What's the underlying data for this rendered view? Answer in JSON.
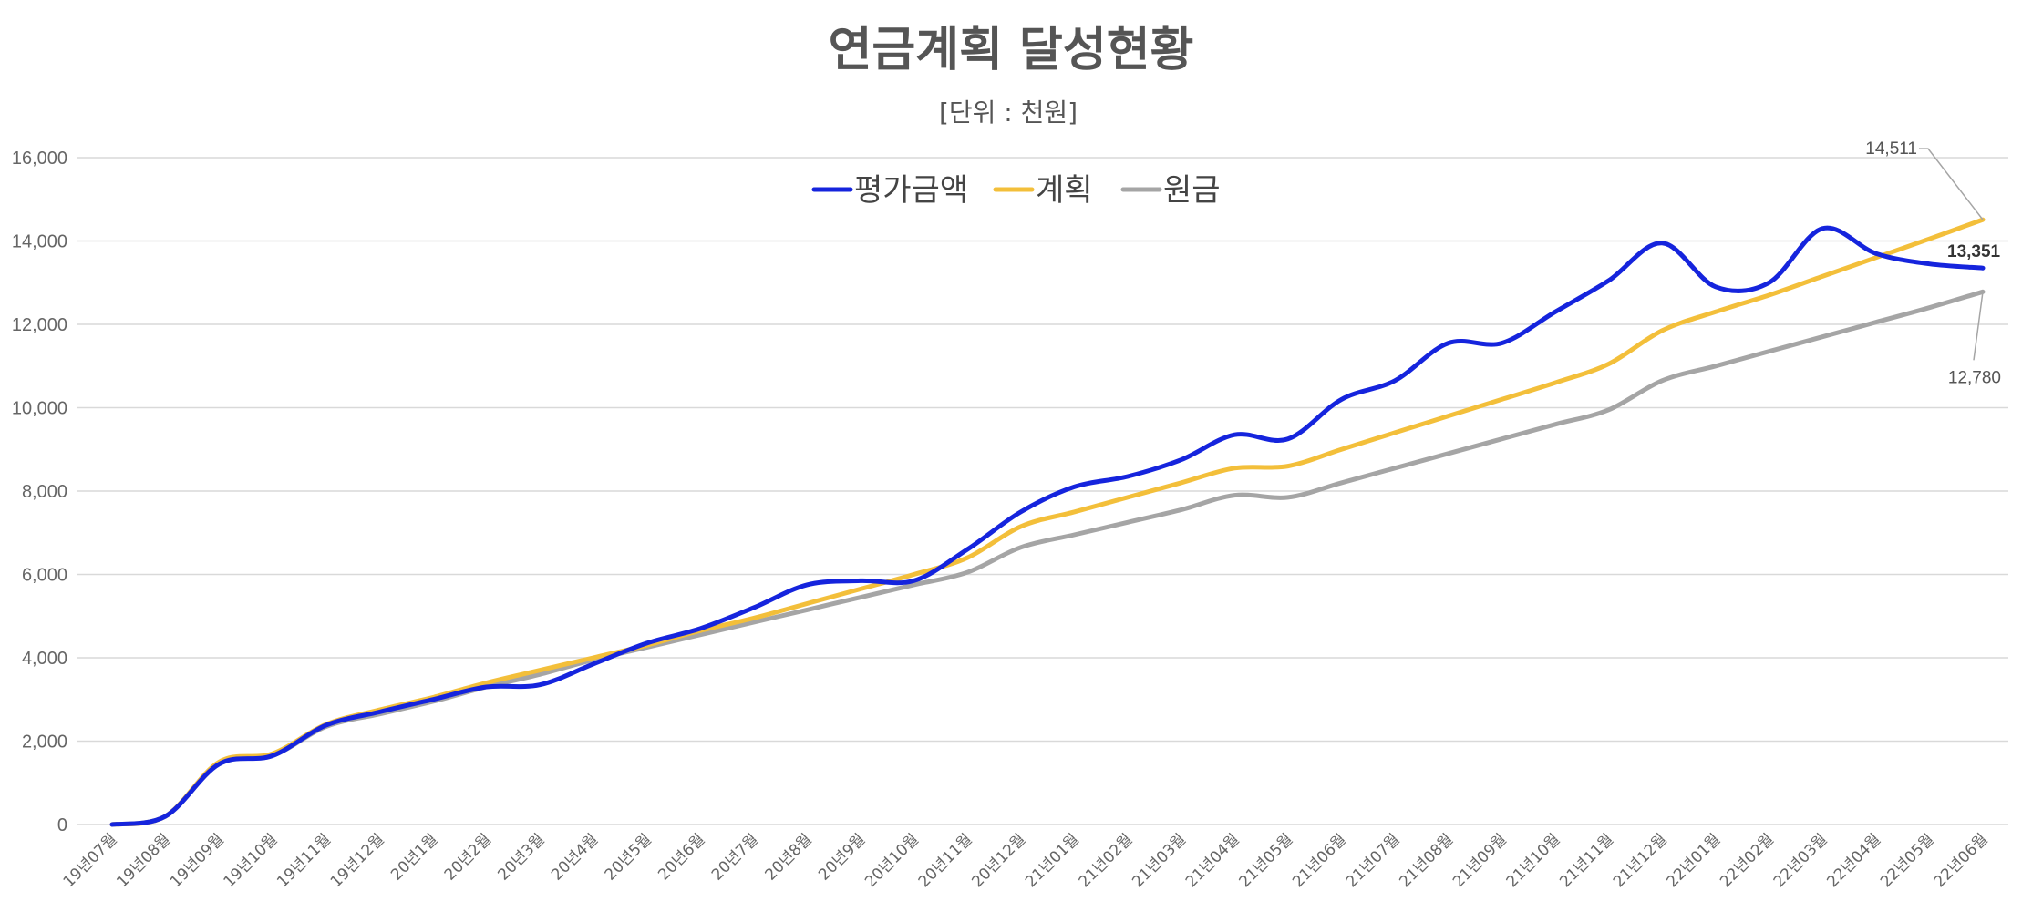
{
  "chart_data": {
    "type": "line",
    "title": "연금계획 달성현황",
    "subtitle": "[단위 : 천원]",
    "xlabel": "",
    "ylabel": "",
    "ylim": [
      0,
      16000
    ],
    "yticks": [
      0,
      2000,
      4000,
      6000,
      8000,
      10000,
      12000,
      14000,
      16000
    ],
    "ytick_labels": [
      "0",
      "2,000",
      "4,000",
      "6,000",
      "8,000",
      "10,000",
      "12,000",
      "14,000",
      "16,000"
    ],
    "grid": true,
    "legend_position": "top-center",
    "categories": [
      "19년07월",
      "19년08월",
      "19년09월",
      "19년10월",
      "19년11월",
      "19년12월",
      "20년1월",
      "20년2월",
      "20년3월",
      "20년4월",
      "20년5월",
      "20년6월",
      "20년7월",
      "20년8월",
      "20년9월",
      "20년10월",
      "20년11월",
      "20년12월",
      "21년01월",
      "21년02월",
      "21년03월",
      "21년04월",
      "21년05월",
      "21년06월",
      "21년07월",
      "21년08월",
      "21년09월",
      "21년10월",
      "21년11월",
      "21년12월",
      "22년01월",
      "22년02월",
      "22년03월",
      "22년04월",
      "22년05월",
      "22년06월"
    ],
    "series": [
      {
        "name": "평가금액",
        "color": "#1524dd",
        "values": [
          0,
          200,
          1450,
          1650,
          2380,
          2700,
          3000,
          3300,
          3350,
          3850,
          4350,
          4700,
          5200,
          5750,
          5850,
          5850,
          6600,
          7500,
          8100,
          8350,
          8750,
          9350,
          9250,
          10200,
          10650,
          11550,
          11550,
          12300,
          13050,
          13950,
          12900,
          13000,
          14300,
          13700,
          13450,
          13351
        ]
      },
      {
        "name": "계획",
        "color": "#f3bf3a",
        "values": [
          0,
          200,
          1500,
          1700,
          2400,
          2750,
          3050,
          3400,
          3700,
          4000,
          4300,
          4650,
          4950,
          5300,
          5650,
          6000,
          6400,
          7150,
          7500,
          7850,
          8200,
          8550,
          8600,
          9000,
          9400,
          9800,
          10200,
          10600,
          11050,
          11850,
          12300,
          12700,
          13150,
          13600,
          14050,
          14511
        ]
      },
      {
        "name": "원금",
        "color": "#a5a5a5",
        "values": [
          0,
          200,
          1450,
          1650,
          2350,
          2650,
          2950,
          3300,
          3600,
          3950,
          4250,
          4550,
          4850,
          5150,
          5450,
          5750,
          6050,
          6650,
          6950,
          7250,
          7550,
          7900,
          7850,
          8200,
          8550,
          8900,
          9250,
          9600,
          9950,
          10650,
          11000,
          11350,
          11700,
          12050,
          12400,
          12780
        ]
      }
    ],
    "annotations": [
      {
        "series": "계획",
        "text": "14,511"
      },
      {
        "series": "평가금액",
        "text": "13,351"
      },
      {
        "series": "원금",
        "text": "12,780"
      }
    ]
  }
}
